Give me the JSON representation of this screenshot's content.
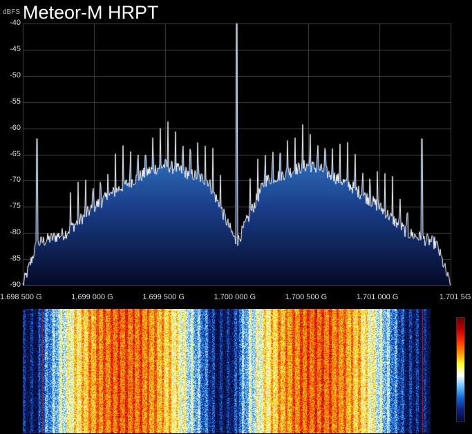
{
  "title": "Meteor-M HRPT",
  "y_unit_label": "dBFS",
  "y_ticks": [
    "-40",
    "-45",
    "-50",
    "-55",
    "-60",
    "-65",
    "-70",
    "-75",
    "-80",
    "-85",
    "-90"
  ],
  "x_ticks": [
    "1.698 500 G",
    "1.699 000 G",
    "1.699 500 G",
    "1.700 000 G",
    "1.700 500 G",
    "1.701 000 G",
    "1.701 5"
  ],
  "x_edge_label": "G",
  "colors": {
    "background": "#000000",
    "grid": "#444444",
    "trace": "#ffffff",
    "fill_top": "#3a8ad8",
    "fill_bottom": "#050a28"
  },
  "chart_data": {
    "type": "area",
    "title": "Meteor-M HRPT",
    "ylabel": "dBFS",
    "xlabel": "",
    "xlim_ghz": [
      1.6985,
      1.7015
    ],
    "ylim": [
      -90,
      -40
    ],
    "grid": true,
    "center_carrier_ghz": 1.7,
    "center_carrier_dbfs": -40,
    "spur_peaks": [
      {
        "x": 1.6986,
        "y": -62
      },
      {
        "x": 1.7013,
        "y": -62
      }
    ],
    "envelope": {
      "x": [
        1.6985,
        1.6986,
        1.6988,
        1.699,
        1.6992,
        1.6994,
        1.6995,
        1.6996,
        1.6998,
        1.6999,
        1.7,
        1.7001,
        1.7002,
        1.7004,
        1.7005,
        1.7006,
        1.7008,
        1.701,
        1.7012,
        1.7014,
        1.7015
      ],
      "y": [
        -90,
        -82,
        -80,
        -75,
        -71,
        -68,
        -67,
        -68,
        -70,
        -76,
        -82,
        -76,
        -70,
        -68,
        -67,
        -68,
        -71,
        -75,
        -80,
        -82,
        -90
      ]
    }
  },
  "waterfall": {
    "colormap": [
      "#050a30",
      "#102080",
      "#1060d0",
      "#60c0ff",
      "#ffffff",
      "#ffff30",
      "#ff9000",
      "#ff3000",
      "#c00000",
      "#6b0000"
    ]
  }
}
